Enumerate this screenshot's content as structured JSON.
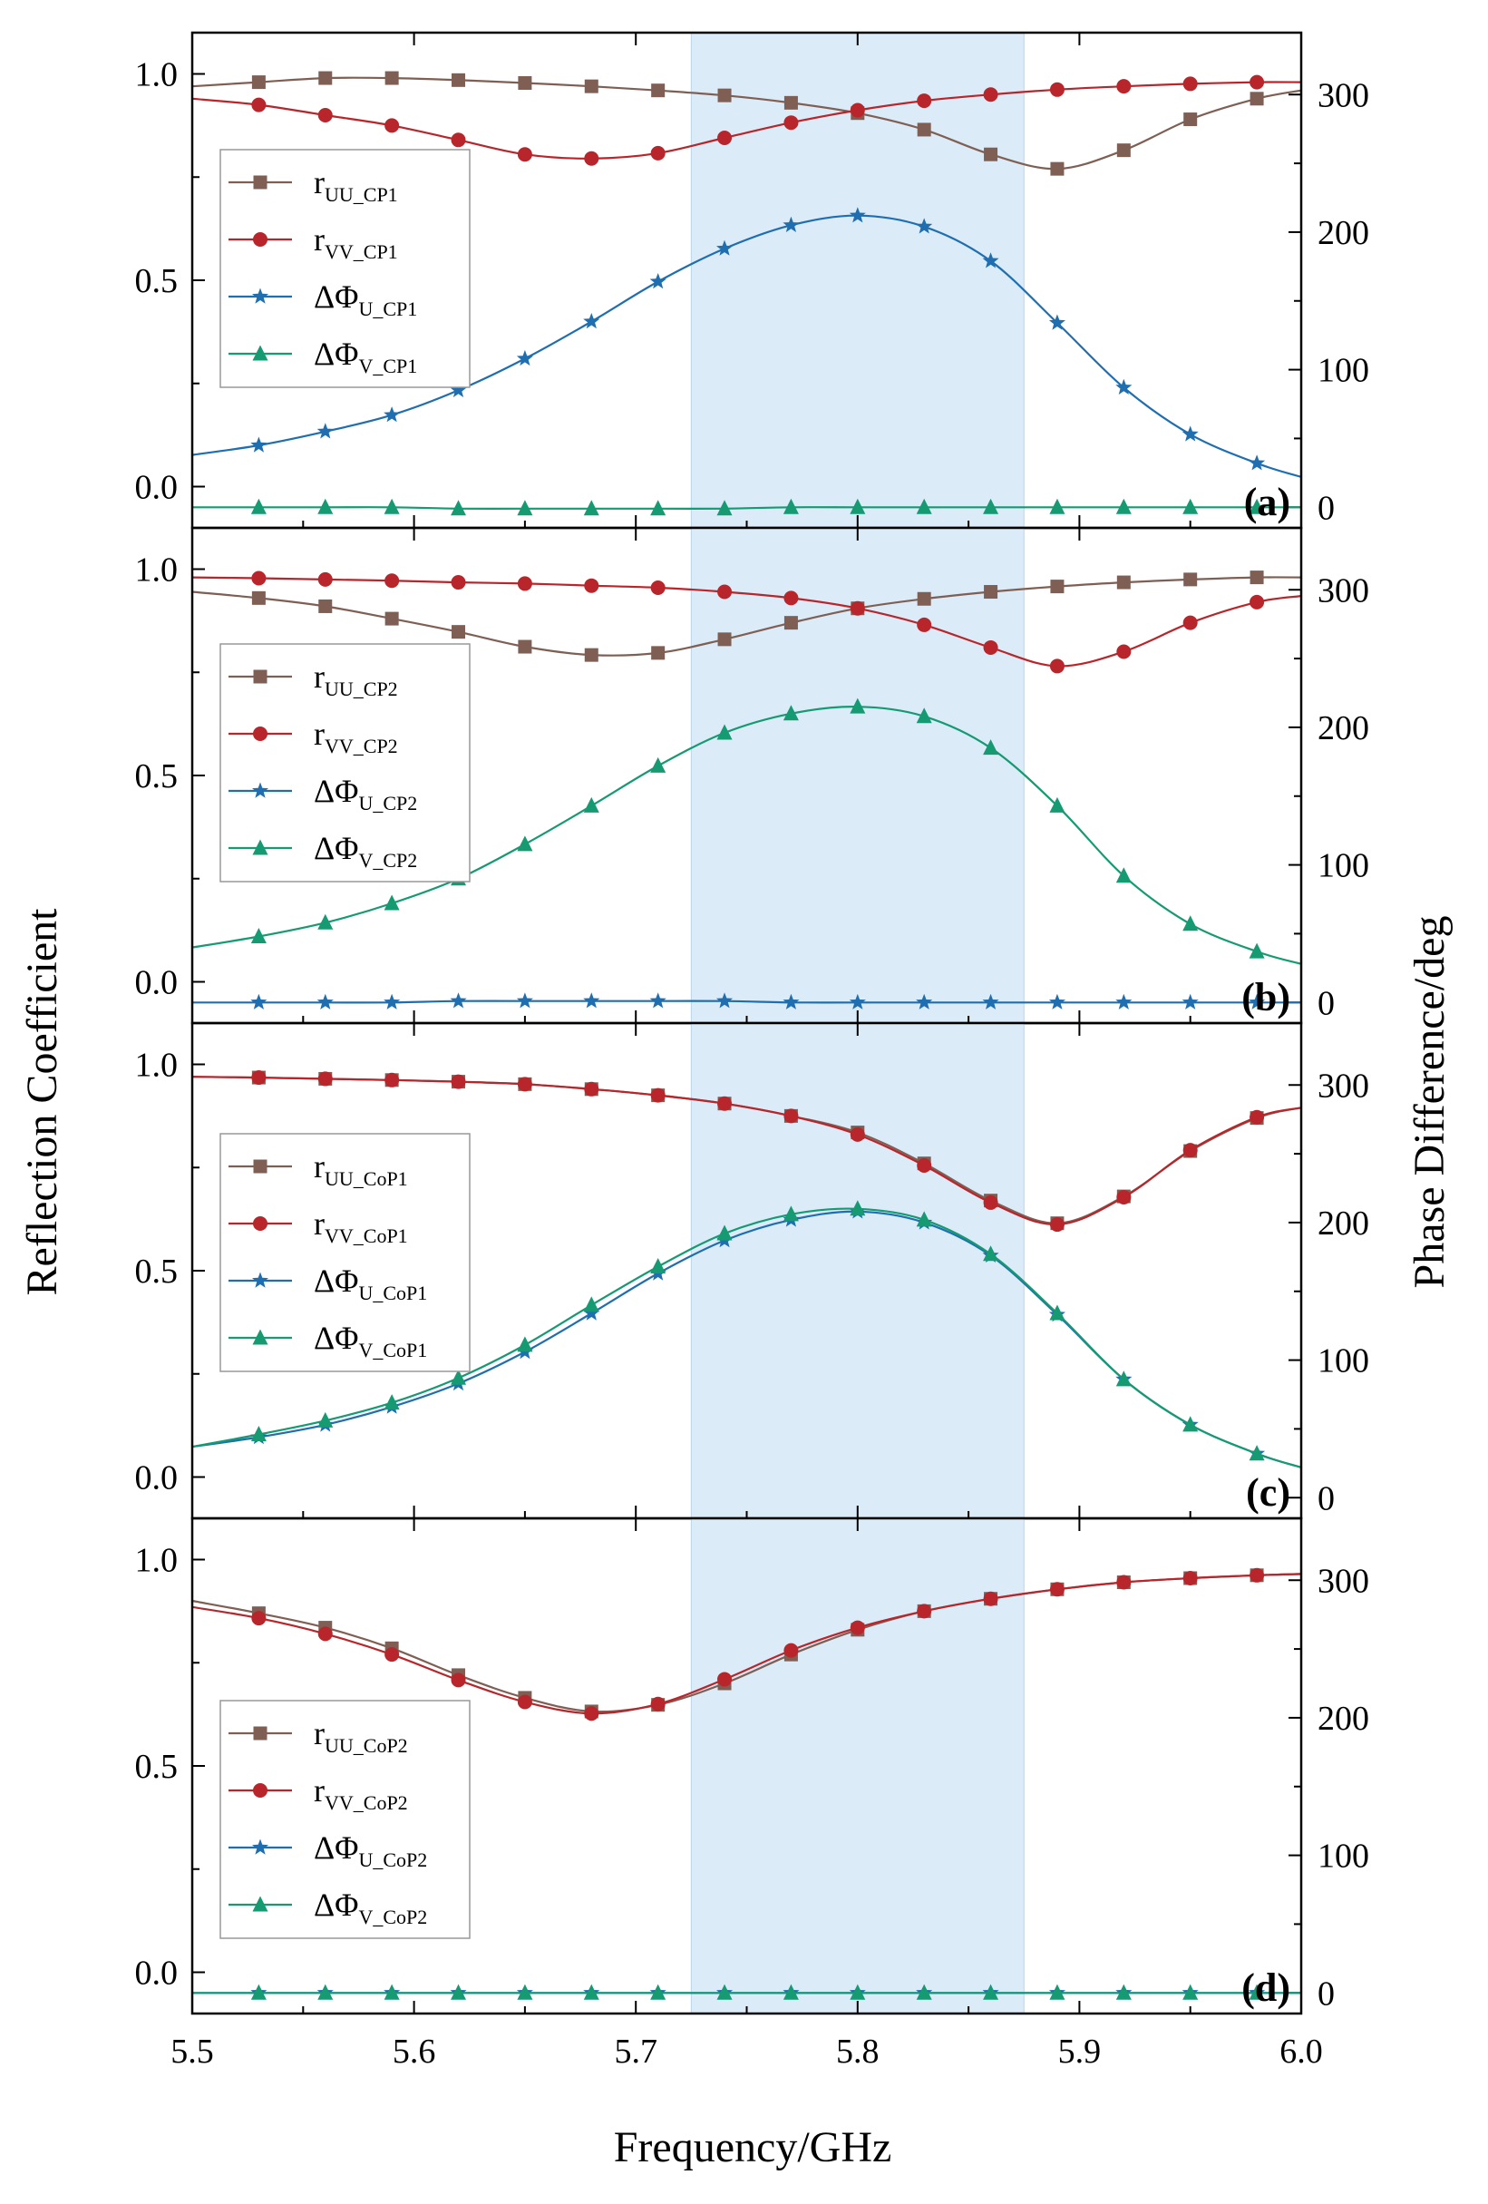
{
  "chart_data": [
    {
      "type": "line",
      "panel_label": "(a)",
      "x": [
        5.5,
        5.53,
        5.56,
        5.59,
        5.62,
        5.65,
        5.68,
        5.71,
        5.74,
        5.77,
        5.8,
        5.83,
        5.86,
        5.89,
        5.92,
        5.95,
        5.98,
        6.0
      ],
      "series": [
        {
          "name": "rUU_CP1",
          "main": "r",
          "sub": "UU_CP1",
          "axis": "left",
          "color": "#7f5f54",
          "marker": "square",
          "values": [
            0.97,
            0.98,
            0.99,
            0.99,
            0.985,
            0.978,
            0.97,
            0.96,
            0.948,
            0.93,
            0.905,
            0.865,
            0.805,
            0.77,
            0.815,
            0.89,
            0.94,
            0.96
          ]
        },
        {
          "name": "rVV_CP1",
          "main": "r",
          "sub": "VV_CP1",
          "axis": "left",
          "color": "#b8252a",
          "marker": "circle",
          "values": [
            0.94,
            0.925,
            0.9,
            0.875,
            0.84,
            0.805,
            0.795,
            0.808,
            0.845,
            0.882,
            0.912,
            0.935,
            0.95,
            0.962,
            0.97,
            0.976,
            0.98,
            0.98
          ]
        },
        {
          "name": "ΔΦU_CP1",
          "main": "ΔΦ",
          "sub": "U_CP1",
          "axis": "right",
          "color": "#1f6eb0",
          "marker": "star",
          "values": [
            38,
            45,
            55,
            67,
            85,
            108,
            135,
            164,
            188,
            205,
            212,
            204,
            179,
            134,
            87,
            53,
            32,
            22
          ]
        },
        {
          "name": "ΔΦV_CP1",
          "main": "ΔΦ",
          "sub": "V_CP1",
          "axis": "right",
          "color": "#159a72",
          "marker": "triangle",
          "values": [
            0,
            0,
            0,
            0,
            -1,
            -1,
            -1,
            -1,
            -1,
            0,
            0,
            0,
            0,
            0,
            0,
            0,
            0,
            0
          ]
        }
      ]
    },
    {
      "type": "line",
      "panel_label": "(b)",
      "x": [
        5.5,
        5.53,
        5.56,
        5.59,
        5.62,
        5.65,
        5.68,
        5.71,
        5.74,
        5.77,
        5.8,
        5.83,
        5.86,
        5.89,
        5.92,
        5.95,
        5.98,
        6.0
      ],
      "series": [
        {
          "name": "rUU_CP2",
          "main": "r",
          "sub": "UU_CP2",
          "axis": "left",
          "color": "#7f5f54",
          "marker": "square",
          "values": [
            0.945,
            0.93,
            0.91,
            0.88,
            0.848,
            0.812,
            0.792,
            0.797,
            0.83,
            0.87,
            0.905,
            0.928,
            0.945,
            0.958,
            0.968,
            0.975,
            0.98,
            0.98
          ]
        },
        {
          "name": "rVV_CP2",
          "main": "r",
          "sub": "VV_CP2",
          "axis": "left",
          "color": "#b8252a",
          "marker": "circle",
          "values": [
            0.98,
            0.978,
            0.975,
            0.972,
            0.968,
            0.965,
            0.96,
            0.955,
            0.945,
            0.93,
            0.905,
            0.865,
            0.81,
            0.765,
            0.8,
            0.87,
            0.92,
            0.935
          ]
        },
        {
          "name": "ΔΦU_CP2",
          "main": "ΔΦ",
          "sub": "U_CP2",
          "axis": "right",
          "color": "#1f6eb0",
          "marker": "star",
          "values": [
            0,
            0,
            0,
            0,
            1,
            1,
            1,
            1,
            1,
            0,
            0,
            0,
            0,
            0,
            0,
            0,
            0,
            0
          ]
        },
        {
          "name": "ΔΦV_CP2",
          "main": "ΔΦ",
          "sub": "V_CP2",
          "axis": "right",
          "color": "#159a72",
          "marker": "triangle",
          "values": [
            40,
            48,
            58,
            72,
            90,
            115,
            143,
            172,
            196,
            210,
            215,
            208,
            185,
            143,
            92,
            57,
            37,
            28
          ]
        }
      ]
    },
    {
      "type": "line",
      "panel_label": "(c)",
      "x": [
        5.5,
        5.53,
        5.56,
        5.59,
        5.62,
        5.65,
        5.68,
        5.71,
        5.74,
        5.77,
        5.8,
        5.83,
        5.86,
        5.89,
        5.92,
        5.95,
        5.98,
        6.0
      ],
      "series": [
        {
          "name": "rUU_CoP1",
          "main": "r",
          "sub": "UU_CoP1",
          "axis": "left",
          "color": "#7f5f54",
          "marker": "square",
          "values": [
            0.97,
            0.968,
            0.965,
            0.962,
            0.958,
            0.952,
            0.94,
            0.925,
            0.905,
            0.875,
            0.835,
            0.76,
            0.67,
            0.615,
            0.68,
            0.79,
            0.87,
            0.895
          ]
        },
        {
          "name": "rVV_CoP1",
          "main": "r",
          "sub": "VV_CoP1",
          "axis": "left",
          "color": "#b8252a",
          "marker": "circle",
          "values": [
            0.97,
            0.968,
            0.965,
            0.962,
            0.958,
            0.952,
            0.94,
            0.925,
            0.905,
            0.875,
            0.83,
            0.755,
            0.665,
            0.612,
            0.678,
            0.792,
            0.872,
            0.895
          ]
        },
        {
          "name": "ΔΦU_CoP1",
          "main": "ΔΦ",
          "sub": "U_CoP1",
          "axis": "right",
          "color": "#1f6eb0",
          "marker": "star",
          "values": [
            37,
            44,
            53,
            66,
            83,
            106,
            134,
            163,
            187,
            202,
            208,
            200,
            176,
            133,
            86,
            53,
            32,
            22
          ]
        },
        {
          "name": "ΔΦV_CoP1",
          "main": "ΔΦ",
          "sub": "V_CoP1",
          "axis": "right",
          "color": "#159a72",
          "marker": "triangle",
          "values": [
            37,
            46,
            56,
            69,
            87,
            111,
            140,
            168,
            192,
            206,
            210,
            202,
            177,
            134,
            86,
            53,
            32,
            22
          ]
        }
      ]
    },
    {
      "type": "line",
      "panel_label": "(d)",
      "x": [
        5.5,
        5.53,
        5.56,
        5.59,
        5.62,
        5.65,
        5.68,
        5.71,
        5.74,
        5.77,
        5.8,
        5.83,
        5.86,
        5.89,
        5.92,
        5.95,
        5.98,
        6.0
      ],
      "series": [
        {
          "name": "rUU_CoP2",
          "main": "r",
          "sub": "UU_CoP2",
          "axis": "left",
          "color": "#7f5f54",
          "marker": "square",
          "values": [
            0.9,
            0.87,
            0.835,
            0.785,
            0.72,
            0.665,
            0.632,
            0.648,
            0.7,
            0.77,
            0.83,
            0.875,
            0.905,
            0.928,
            0.945,
            0.955,
            0.962,
            0.965
          ]
        },
        {
          "name": "rVV_CoP2",
          "main": "r",
          "sub": "VV_CoP2",
          "axis": "left",
          "color": "#b8252a",
          "marker": "circle",
          "values": [
            0.885,
            0.858,
            0.82,
            0.77,
            0.708,
            0.655,
            0.627,
            0.65,
            0.71,
            0.78,
            0.835,
            0.875,
            0.905,
            0.928,
            0.945,
            0.955,
            0.962,
            0.965
          ]
        },
        {
          "name": "ΔΦU_CoP2",
          "main": "ΔΦ",
          "sub": "U_CoP2",
          "axis": "right",
          "color": "#1f6eb0",
          "marker": "star",
          "values": [
            0,
            0,
            0,
            0,
            0,
            0,
            0,
            0,
            0,
            0,
            0,
            0,
            0,
            0,
            0,
            0,
            0,
            0
          ]
        },
        {
          "name": "ΔΦV_CoP2",
          "main": "ΔΦ",
          "sub": "V_CoP2",
          "axis": "right",
          "color": "#159a72",
          "marker": "triangle",
          "values": [
            0,
            0,
            0,
            0,
            0,
            0,
            0,
            0,
            0,
            0,
            0,
            0,
            0,
            0,
            0,
            0,
            0,
            0
          ]
        }
      ]
    }
  ],
  "axes": {
    "xlabel": "Frequency/GHz",
    "ylabel_left": "Reflection Coefficient",
    "ylabel_right": "Phase Difference/deg",
    "xlim": [
      5.5,
      6.0
    ],
    "ylim_left": [
      -0.1,
      1.1
    ],
    "ylim_right": [
      -15,
      345
    ],
    "x_ticks": [
      "5.5",
      "5.6",
      "5.7",
      "5.8",
      "5.9",
      "6.0"
    ],
    "y_left_ticks": [
      "0.0",
      "0.5",
      "1.0"
    ],
    "y_right_ticks": [
      "0",
      "100",
      "200",
      "300"
    ],
    "highlight_band": [
      5.725,
      5.875
    ],
    "highlight_color": "#dcebf8",
    "legend_position": "left, middle"
  }
}
